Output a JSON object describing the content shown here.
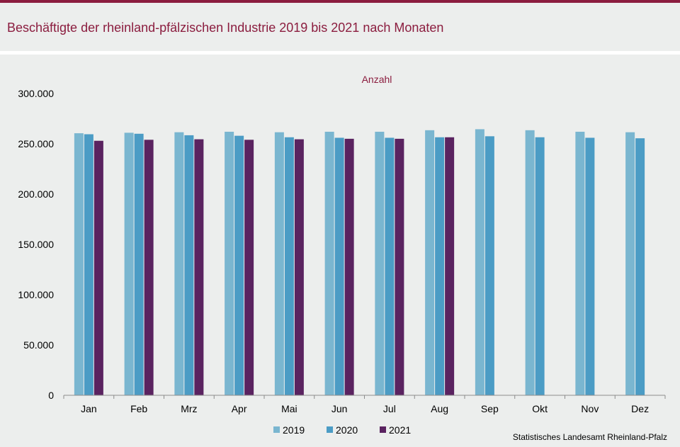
{
  "title": "Beschäftigte der rheinland-pfälzischen Industrie 2019 bis 2021 nach Monaten",
  "source": "Statistisches Landesamt  Rheinland-Pfalz",
  "colors": {
    "s2019": "#7ab6d0",
    "s2020": "#4b9cc5",
    "s2021": "#5a2360",
    "accent": "#8b1d3f"
  },
  "chart_data": {
    "type": "bar",
    "title": "Beschäftigte der rheinland-pfälzischen Industrie 2019 bis 2021 nach Monaten",
    "ylabel": "Anzahl",
    "xlabel": "",
    "categories": [
      "Jan",
      "Feb",
      "Mrz",
      "Apr",
      "Mai",
      "Jun",
      "Jul",
      "Aug",
      "Sep",
      "Okt",
      "Nov",
      "Dez"
    ],
    "ylim": [
      0,
      300000
    ],
    "yticks": [
      0,
      50000,
      100000,
      150000,
      200000,
      250000,
      300000
    ],
    "ytick_labels": [
      "0",
      "50.000",
      "100.000",
      "150.000",
      "200.000",
      "250.000",
      "300.000"
    ],
    "grid": false,
    "legend_position": "bottom",
    "series": [
      {
        "name": "2019",
        "values": [
          260500,
          261000,
          261500,
          262000,
          261500,
          262000,
          262000,
          263500,
          264500,
          263500,
          262000,
          261500
        ]
      },
      {
        "name": "2020",
        "values": [
          259500,
          260000,
          258500,
          258000,
          256500,
          256000,
          256000,
          256500,
          257500,
          256500,
          256000,
          255500
        ]
      },
      {
        "name": "2021",
        "values": [
          253000,
          254000,
          254500,
          254000,
          254500,
          255000,
          255000,
          256500,
          null,
          null,
          null,
          null
        ]
      }
    ]
  }
}
